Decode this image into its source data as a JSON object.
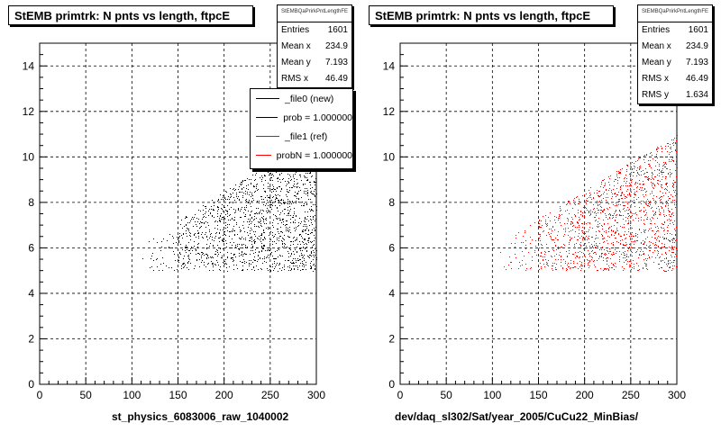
{
  "chart_data": [
    {
      "type": "scatter",
      "title": "StEMB primtrk: N pnts vs length, ftpcE",
      "xlabel": "st_physics_6083006_raw_1040002",
      "ylabel": "",
      "xlim": [
        0,
        300
      ],
      "ylim": [
        0,
        15
      ],
      "xticks": [
        "0",
        "50",
        "100",
        "150",
        "200",
        "250",
        "300"
      ],
      "yticks": [
        "0",
        "2",
        "4",
        "6",
        "8",
        "10",
        "12",
        "14"
      ],
      "grid": true,
      "marker_color": "#000000",
      "points_region": {
        "x_range": [
          110,
          300
        ],
        "y_range": [
          5,
          11
        ],
        "count": 1601
      },
      "stats": {
        "header": "StEMBQaPrirkPntLengthFE",
        "rows": [
          {
            "label": "Entries",
            "value": "1601"
          },
          {
            "label": "Mean x",
            "value": "234.9"
          },
          {
            "label": "Mean y",
            "value": "7.193"
          },
          {
            "label": "RMS x",
            "value": "46.49"
          }
        ]
      },
      "legend": {
        "placement": "top-right",
        "entries": [
          {
            "label": "_file0 (new)",
            "color": "#000000"
          },
          {
            "label": "prob = 1.000000",
            "color": "#000000"
          },
          {
            "label": "_file1 (ref)",
            "color": "#ff0000"
          },
          {
            "label": "probN = 1.000000",
            "color": "#ff0000"
          }
        ]
      }
    },
    {
      "type": "scatter",
      "title": "StEMB primtrk: N pnts vs length, ftpcE",
      "xlabel": "dev/daq_sl302/Sat/year_2005/CuCu22_MinBias/",
      "ylabel": "",
      "xlim": [
        0,
        300
      ],
      "ylim": [
        0,
        15
      ],
      "xticks": [
        "0",
        "50",
        "100",
        "150",
        "200",
        "250",
        "300"
      ],
      "yticks": [
        "0",
        "2",
        "4",
        "6",
        "8",
        "10",
        "12",
        "14"
      ],
      "grid": true,
      "marker_color": "#ff0000",
      "points_region": {
        "x_range": [
          105,
          300
        ],
        "y_range": [
          5,
          11
        ],
        "count": 1601
      },
      "stats": {
        "header": "StEMBQaPrirkPntLengthFE",
        "rows": [
          {
            "label": "Entries",
            "value": "1601"
          },
          {
            "label": "Mean x",
            "value": "234.9"
          },
          {
            "label": "Mean y",
            "value": "7.193"
          },
          {
            "label": "RMS x",
            "value": "46.49"
          },
          {
            "label": "RMS y",
            "value": "1.634"
          }
        ]
      }
    }
  ]
}
